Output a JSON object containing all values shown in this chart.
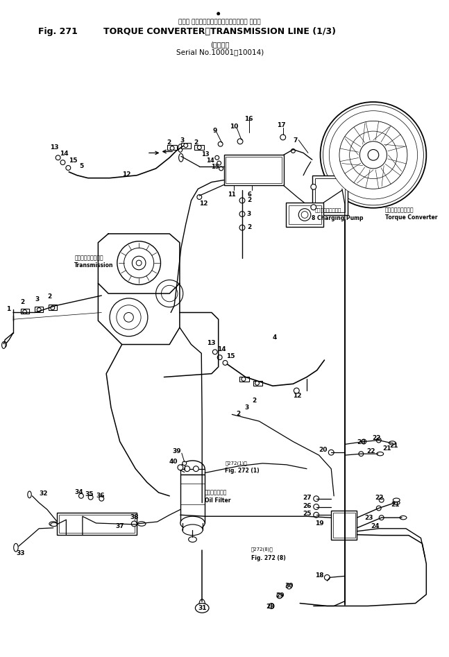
{
  "title_japanese": "トルク コンバータ・トランスミッション ライン",
  "title_english": "TORQUE CONVERTER・TRANSMISSION LINE (1/3)",
  "subtitle_japanese": "適用号機",
  "subtitle_english": "Serial No.10001～10014",
  "fig_number": "Fig. 271",
  "background_color": "#ffffff",
  "line_color": "#000000",
  "torque_converter_ja": "トルク　コンバータ",
  "torque_converter_en": "Torque Converter",
  "transmission_ja": "トランスミッション",
  "transmission_en": "Transmission",
  "charging_pump_ja": "チャージングポンプ",
  "charging_pump_en": "8 Charging Pump",
  "oil_filter_ja": "オイルフィルタ",
  "oil_filter_en": "Oil Filter",
  "fig272_1_ja": "第272(1)図",
  "fig272_1_en": "Fig. 272 (1)",
  "fig272_8_ja": "第272(8)図",
  "fig272_8_en": "Fig. 272 (8)"
}
